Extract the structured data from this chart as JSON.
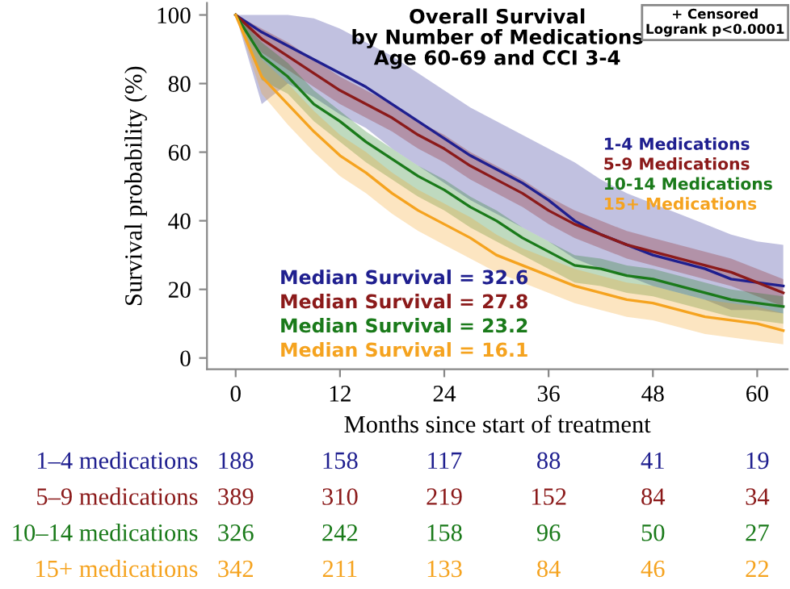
{
  "chart_data": [
    {
      "type": "line",
      "title": "Overall Survival\nby Number of Medications\nAge 60-69 and CCI 3-4",
      "xlabel": "Months since start of treatment",
      "ylabel": "Survival probability (%)",
      "x": [
        0,
        3,
        6,
        9,
        12,
        15,
        18,
        21,
        24,
        27,
        30,
        33,
        36,
        39,
        42,
        45,
        48,
        51,
        54,
        57,
        60,
        63
      ],
      "series": [
        {
          "name": "1-4 Medications",
          "color": "#1f1f8f",
          "values": [
            100,
            95,
            91,
            87,
            83,
            79,
            74,
            69,
            64,
            59,
            55,
            51,
            46,
            40,
            36,
            33,
            30,
            28,
            26,
            23,
            22,
            21
          ],
          "upper": [
            100,
            100,
            100,
            99,
            96,
            92,
            88,
            83,
            78,
            73,
            69,
            65,
            61,
            57,
            52,
            48,
            45,
            42,
            39,
            36,
            34,
            33
          ],
          "lower": [
            100,
            74,
            80,
            76,
            71,
            67,
            61,
            56,
            51,
            46,
            42,
            38,
            34,
            29,
            26,
            24,
            21,
            19,
            17,
            14,
            14,
            13
          ]
        },
        {
          "name": "5-9 Medications",
          "color": "#8b1a1a",
          "values": [
            100,
            93,
            88,
            83,
            78,
            74,
            70,
            65,
            61,
            56,
            52,
            48,
            43,
            39,
            36,
            33,
            31,
            29,
            27,
            25,
            22,
            19
          ],
          "upper": [
            100,
            96,
            92,
            87,
            82,
            78,
            74,
            69,
            65,
            60,
            56,
            52,
            47,
            43,
            40,
            37,
            35,
            33,
            31,
            29,
            26,
            23
          ],
          "lower": [
            100,
            89,
            84,
            79,
            74,
            70,
            66,
            61,
            57,
            52,
            48,
            44,
            39,
            35,
            32,
            29,
            27,
            25,
            23,
            21,
            18,
            15
          ]
        },
        {
          "name": "10-14 Medications",
          "color": "#1a7a1a",
          "values": [
            100,
            88,
            82,
            74,
            69,
            63,
            58,
            53,
            49,
            44,
            40,
            35,
            31,
            27,
            26,
            24,
            23,
            21,
            19,
            17,
            16,
            15
          ],
          "upper": [
            100,
            92,
            86,
            78,
            72,
            66,
            61,
            56,
            52,
            47,
            43,
            38,
            34,
            30,
            29,
            27,
            26,
            24,
            22,
            20,
            19,
            18
          ],
          "lower": [
            100,
            81,
            77,
            69,
            63,
            57,
            52,
            47,
            43,
            38,
            34,
            30,
            26,
            22,
            21,
            19,
            18,
            16,
            14,
            12,
            11,
            10
          ]
        },
        {
          "name": "15+ Medications",
          "color": "#f5a31f",
          "values": [
            100,
            82,
            74,
            66,
            59,
            54,
            48,
            43,
            39,
            35,
            30,
            27,
            24,
            21,
            19,
            17,
            16,
            14,
            12,
            11,
            10,
            8
          ],
          "upper": [
            100,
            87,
            80,
            72,
            65,
            60,
            54,
            49,
            45,
            41,
            36,
            32,
            29,
            26,
            24,
            22,
            21,
            19,
            17,
            16,
            15,
            13
          ],
          "lower": [
            100,
            77,
            68,
            60,
            53,
            48,
            42,
            37,
            33,
            29,
            25,
            22,
            19,
            16,
            14,
            12,
            11,
            9,
            7,
            6,
            5,
            4
          ]
        }
      ],
      "annotations": [
        "+ Censored\nLogrank p<0.0001",
        "Median Survival = 32.6",
        "Median Survival = 27.8",
        "Median Survival = 23.2",
        "Median Survival = 16.1"
      ],
      "xlim": [
        -3.3,
        63.5
      ],
      "ylim": [
        -3.3,
        103.5
      ],
      "xticks": [
        0,
        12,
        24,
        36,
        48,
        60
      ],
      "yticks": [
        0,
        20,
        40,
        60,
        80,
        100
      ],
      "legend": "right",
      "grid": false
    },
    {
      "type": "other",
      "annotations": [
        "1–4 medications",
        "188",
        "158",
        "117",
        "88",
        "41",
        "19",
        "5–9 medications",
        "389",
        "310",
        "219",
        "152",
        "84",
        "34",
        "10–14 medications",
        "326",
        "242",
        "158",
        "96",
        "50",
        "27",
        "15+ medications",
        "342",
        "211",
        "133",
        "84",
        "46",
        "22"
      ]
    }
  ]
}
